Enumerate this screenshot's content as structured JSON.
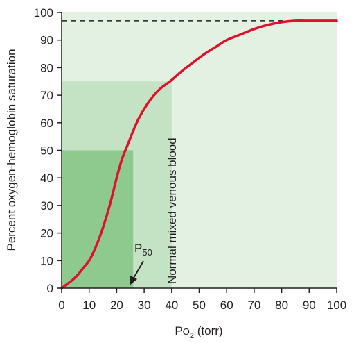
{
  "chart_data": {
    "type": "line",
    "xlabel_main": "P",
    "xlabel_sub": "O",
    "xlabel_sub2": "2",
    "xlabel_tail": " (torr)",
    "ylabel": "Percent oxygen-hemoglobin saturation",
    "xlim": [
      0,
      100
    ],
    "ylim": [
      0,
      100
    ],
    "x_ticks": [
      "0",
      "10",
      "20",
      "30",
      "40",
      "50",
      "60",
      "70",
      "80",
      "90",
      "100"
    ],
    "y_ticks": [
      "0",
      "10",
      "20",
      "30",
      "40",
      "50",
      "60",
      "70",
      "80",
      "90",
      "100"
    ],
    "series": [
      {
        "x": [
          0,
          2,
          4,
          6,
          8,
          10,
          12,
          14,
          16,
          18,
          20,
          22,
          24,
          26,
          28,
          30,
          32,
          34,
          36,
          38,
          40,
          44,
          48,
          52,
          56,
          60,
          65,
          70,
          75,
          80,
          85,
          90,
          95,
          100
        ],
        "y": [
          0,
          1.5,
          3,
          5,
          7.5,
          10,
          14,
          19,
          25,
          32,
          40,
          47,
          52,
          57,
          61.5,
          65,
          68,
          70.5,
          72.5,
          74,
          75.5,
          79,
          82,
          85,
          87.5,
          90,
          92,
          94,
          95.5,
          96.5,
          97,
          97,
          97,
          97
        ],
        "color": "#e0102a"
      }
    ],
    "saturation_line": {
      "y": 97,
      "style": "dashed"
    },
    "regions": {
      "venous": {
        "x": 40,
        "y": 75
      },
      "p50": {
        "x": 26,
        "y": 50
      }
    },
    "annotations": {
      "venous_label": "Normal mixed venous blood",
      "p50_main": "P",
      "p50_sub": "50"
    },
    "colors": {
      "plot_bg": "#e3f1e3",
      "venous_fill": "#c4e2c4",
      "p50_fill": "#8ec98e",
      "curve": "#e0102a",
      "axis": "#231f20"
    }
  }
}
